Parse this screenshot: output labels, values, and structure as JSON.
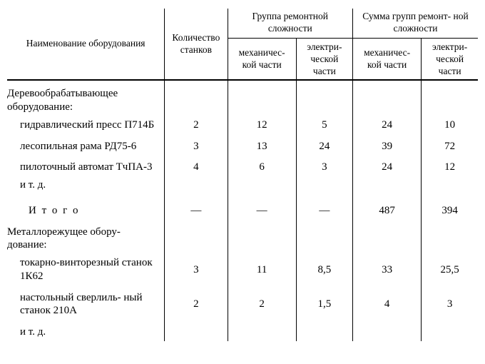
{
  "header": {
    "name": "Наименование оборудования",
    "qty": "Количество станков",
    "grp": "Группа ремонтной сложности",
    "sumgrp": "Сумма групп ремонт-\nной сложности",
    "mech": "механичес-\nкой части",
    "elec": "электри-\nческой части"
  },
  "sections": [
    {
      "title": "Деревообрабатывающее оборудование:",
      "rows": [
        {
          "name": "гидравлический пресс П714Б",
          "qty": "2",
          "m1": "12",
          "e1": "5",
          "m2": "24",
          "e2": "10"
        },
        {
          "name": "лесопильная рама РД75-6",
          "qty": "3",
          "m1": "13",
          "e1": "24",
          "m2": "39",
          "e2": "72"
        },
        {
          "name": "пилоточный автомат ТчПА-3",
          "qty": "4",
          "m1": "6",
          "e1": "3",
          "m2": "24",
          "e2": "12"
        }
      ],
      "etc": "и т. д.",
      "total": {
        "label": "И т о г о",
        "qty": "—",
        "m1": "—",
        "e1": "—",
        "m2": "487",
        "e2": "394"
      }
    },
    {
      "title": "Металлорежущее обору-\nдование:",
      "rows": [
        {
          "name": "токарно-винторезный станок 1К62",
          "qty": "3",
          "m1": "11",
          "e1": "8,5",
          "m2": "33",
          "e2": "25,5"
        },
        {
          "name": "настольный сверлиль-\nный станок 210А",
          "qty": "2",
          "m1": "2",
          "e1": "1,5",
          "m2": "4",
          "e2": "3"
        }
      ],
      "etc": "и т. д."
    }
  ],
  "colors": {
    "text": "#000000",
    "background": "#ffffff",
    "rule": "#000000"
  }
}
